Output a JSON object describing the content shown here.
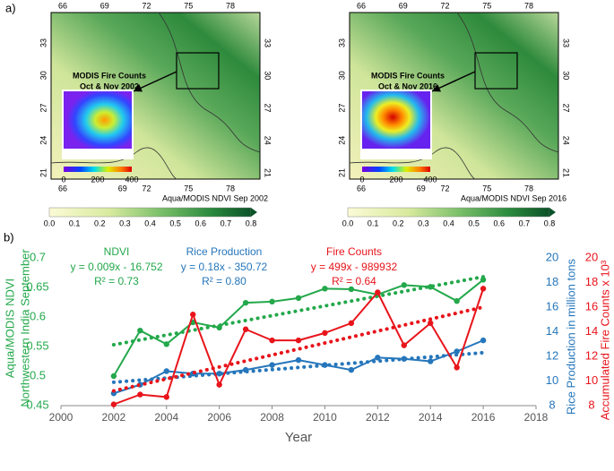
{
  "panel_a": {
    "label": "a)",
    "maps": [
      {
        "top_ticks": [
          66,
          69,
          72,
          75,
          78
        ],
        "bottom_ticks": [
          66,
          69,
          72,
          75,
          78
        ],
        "left_ticks": [
          33,
          30,
          27,
          24,
          21
        ],
        "right_ticks": [
          33,
          30,
          27,
          24,
          21
        ],
        "annotation": [
          "MODIS Fire Counts",
          "Oct & Nov 2002"
        ],
        "inset_ticks": [
          0,
          200,
          400
        ],
        "caption": "Aqua/MODIS NDVI Sep 2002",
        "colorbar_ticks": [
          "0.0",
          "0.1",
          "0.2",
          "0.3",
          "0.4",
          "0.5",
          "0.6",
          "0.7",
          "0.8"
        ]
      },
      {
        "top_ticks": [
          66,
          69,
          72,
          75,
          78
        ],
        "bottom_ticks": [
          66,
          69,
          72,
          75,
          78
        ],
        "left_ticks": [
          33,
          30,
          27,
          24,
          21
        ],
        "right_ticks": [
          33,
          30,
          27,
          24,
          21
        ],
        "annotation": [
          "MODIS Fire Counts",
          "Oct & Nov 2016"
        ],
        "inset_ticks": [
          0,
          200,
          400
        ],
        "caption": "Aqua/MODIS NDVI Sep 2016",
        "colorbar_ticks": [
          "0.0",
          "0.1",
          "0.2",
          "0.3",
          "0.4",
          "0.5",
          "0.6",
          "0.7",
          "0.8"
        ]
      }
    ]
  },
  "chart_data": {
    "type": "line",
    "label": "b)",
    "x_label": "Year",
    "y_label": [
      "Aqua/MODIS NDVI",
      "Northwestern India September"
    ],
    "y2_label": "Rice Production in million tons",
    "y3_label": "Accumulated Fire Counts x 10³",
    "x": [
      2002,
      2003,
      2004,
      2005,
      2006,
      2007,
      2008,
      2009,
      2010,
      2011,
      2012,
      2013,
      2014,
      2015,
      2016
    ],
    "xlim": [
      2000,
      2018
    ],
    "xticks": [
      2000,
      2002,
      2004,
      2006,
      2008,
      2010,
      2012,
      2014,
      2016,
      2018
    ],
    "ylim": [
      0.45,
      0.7
    ],
    "yticks": [
      0.45,
      0.5,
      0.55,
      0.6,
      0.65,
      0.7
    ],
    "y2lim": [
      8,
      20
    ],
    "y2ticks": [
      8,
      10,
      12,
      14,
      16,
      18,
      20
    ],
    "y3lim": [
      8,
      20
    ],
    "y3ticks": [
      8,
      10,
      12,
      14,
      16,
      18,
      20
    ],
    "series": [
      {
        "name": "NDVI",
        "color": "#23a84b",
        "axis": "y",
        "values": [
          0.5,
          0.577,
          0.554,
          0.591,
          0.582,
          0.624,
          0.626,
          0.632,
          0.648,
          0.647,
          0.638,
          0.654,
          0.651,
          0.627,
          0.663
        ],
        "equation": "y = 0.009x - 16.752",
        "r2": "R² = 0.73",
        "trend": [
          0.553,
          0.668
        ]
      },
      {
        "name": "Rice Production",
        "color": "#2576bb",
        "axis": "y2",
        "values": [
          9.0,
          9.7,
          10.8,
          10.6,
          10.6,
          10.9,
          11.3,
          11.7,
          11.3,
          10.9,
          11.9,
          11.8,
          11.6,
          12.4,
          13.3
        ],
        "equation": "y = 0.18x - 350.72",
        "r2": "R² = 0.80",
        "trend": [
          9.9,
          12.3
        ]
      },
      {
        "name": "Fire Counts",
        "color": "#e8141b",
        "axis": "y3",
        "values": [
          8.1,
          8.9,
          8.7,
          15.4,
          9.7,
          14.2,
          13.3,
          13.3,
          13.9,
          14.7,
          17.2,
          12.9,
          14.7,
          11.1,
          17.5
        ],
        "equation": "y = 499x - 989932",
        "r2": "R² = 0.64",
        "trend": [
          9.2,
          16.0
        ]
      }
    ]
  }
}
